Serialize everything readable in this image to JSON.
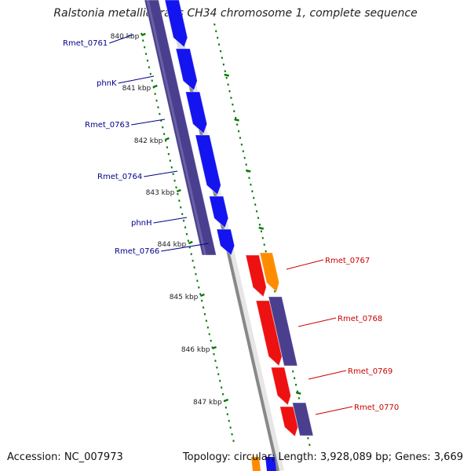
{
  "title": "Ralstonia metallidurans CH34 chromosome 1, complete sequence",
  "footer": {
    "accession": "Accession: NC_007973",
    "summary": "Topology: circular; Length: 3,928,089 bp; Genes: 3,669"
  },
  "scale_unit": "kbp",
  "ruler_labels": [
    "840 kbp",
    "841 kbp",
    "842 kbp",
    "843 kbp",
    "844 kbp",
    "845 kbp",
    "846 kbp",
    "847 kbp"
  ],
  "colors": {
    "forward_gene": "#1414f0",
    "reverse_gene": "#ee1111",
    "reverse_gene_alt": "#ff8c00",
    "cds_track": "#4a3f8f",
    "forward_label": "#00008b",
    "reverse_label": "#cc0000",
    "tick_green": "#0a7a0a",
    "backbone": "#888888"
  },
  "forward_genes": [
    {
      "label": "Rmet_0761"
    },
    {
      "label": "phnK"
    },
    {
      "label": "Rmet_0763"
    },
    {
      "label": "Rmet_0764"
    },
    {
      "label": "phnH"
    },
    {
      "label": "Rmet_0766"
    }
  ],
  "reverse_genes": [
    {
      "label": "Rmet_0767"
    },
    {
      "label": "Rmet_0768"
    },
    {
      "label": "Rmet_0769"
    },
    {
      "label": "Rmet_0770"
    }
  ]
}
